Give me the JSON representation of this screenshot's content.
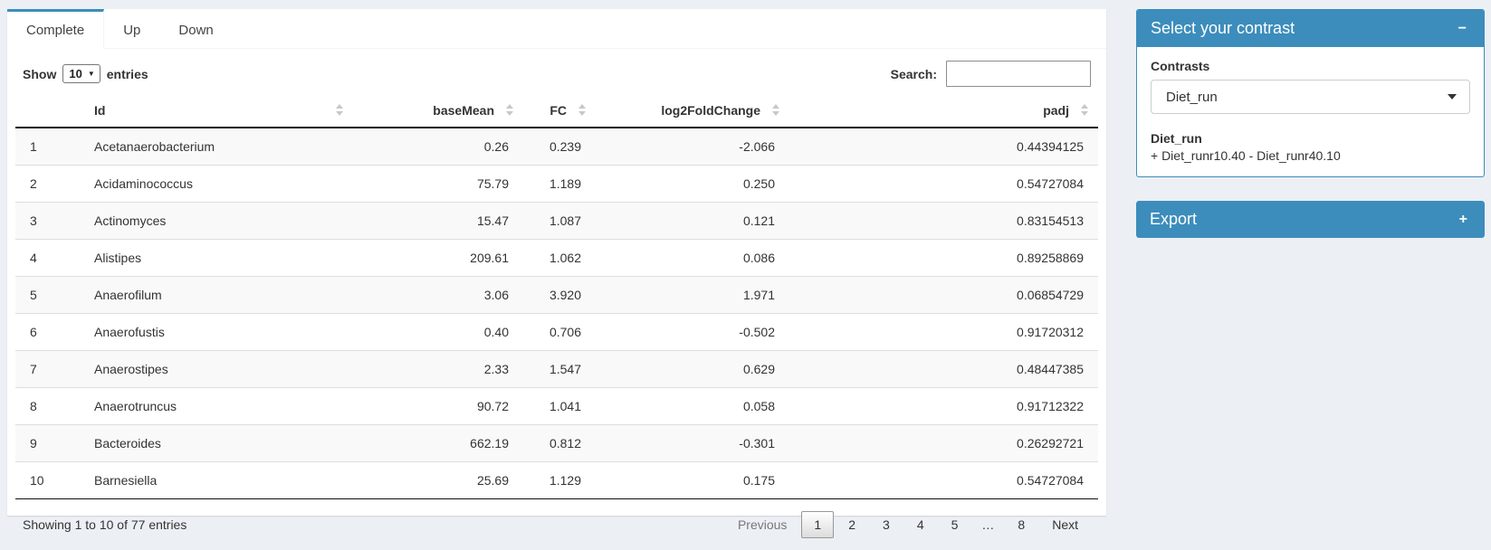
{
  "tabs": [
    {
      "label": "Complete",
      "active": true
    },
    {
      "label": "Up",
      "active": false
    },
    {
      "label": "Down",
      "active": false
    }
  ],
  "table_controls": {
    "show_label": "Show",
    "page_length": "10",
    "entries_label": "entries",
    "search_label": "Search:",
    "search_value": ""
  },
  "table": {
    "columns": [
      {
        "label": ""
      },
      {
        "label": "Id"
      },
      {
        "label": "baseMean"
      },
      {
        "label": "FC"
      },
      {
        "label": "log2FoldChange"
      },
      {
        "label": "padj"
      }
    ],
    "rows": [
      {
        "num": "1",
        "id": "Acetanaerobacterium",
        "baseMean": "0.26",
        "fc": "0.239",
        "log2fc": "-2.066",
        "padj": "0.44394125"
      },
      {
        "num": "2",
        "id": "Acidaminococcus",
        "baseMean": "75.79",
        "fc": "1.189",
        "log2fc": "0.250",
        "padj": "0.54727084"
      },
      {
        "num": "3",
        "id": "Actinomyces",
        "baseMean": "15.47",
        "fc": "1.087",
        "log2fc": "0.121",
        "padj": "0.83154513"
      },
      {
        "num": "4",
        "id": "Alistipes",
        "baseMean": "209.61",
        "fc": "1.062",
        "log2fc": "0.086",
        "padj": "0.89258869"
      },
      {
        "num": "5",
        "id": "Anaerofilum",
        "baseMean": "3.06",
        "fc": "3.920",
        "log2fc": "1.971",
        "padj": "0.06854729"
      },
      {
        "num": "6",
        "id": "Anaerofustis",
        "baseMean": "0.40",
        "fc": "0.706",
        "log2fc": "-0.502",
        "padj": "0.91720312"
      },
      {
        "num": "7",
        "id": "Anaerostipes",
        "baseMean": "2.33",
        "fc": "1.547",
        "log2fc": "0.629",
        "padj": "0.48447385"
      },
      {
        "num": "8",
        "id": "Anaerotruncus",
        "baseMean": "90.72",
        "fc": "1.041",
        "log2fc": "0.058",
        "padj": "0.91712322"
      },
      {
        "num": "9",
        "id": "Bacteroides",
        "baseMean": "662.19",
        "fc": "0.812",
        "log2fc": "-0.301",
        "padj": "0.26292721"
      },
      {
        "num": "10",
        "id": "Barnesiella",
        "baseMean": "25.69",
        "fc": "1.129",
        "log2fc": "0.175",
        "padj": "0.54727084"
      }
    ]
  },
  "footer": {
    "info": "Showing 1 to 10 of 77 entries",
    "pagination": [
      {
        "label": "Previous",
        "state": "disabled"
      },
      {
        "label": "1",
        "state": "active"
      },
      {
        "label": "2",
        "state": ""
      },
      {
        "label": "3",
        "state": ""
      },
      {
        "label": "4",
        "state": ""
      },
      {
        "label": "5",
        "state": ""
      },
      {
        "label": "…",
        "state": "ellipsis"
      },
      {
        "label": "8",
        "state": ""
      },
      {
        "label": "Next",
        "state": ""
      }
    ]
  },
  "contrast_panel": {
    "title": "Select your contrast",
    "collapse_icon": "−",
    "contrasts_label": "Contrasts",
    "selected_contrast": "Diet_run",
    "contrast_name": "Diet_run",
    "contrast_formula": "+ Diet_runr10.40 - Diet_runr40.10"
  },
  "export_panel": {
    "title": "Export",
    "expand_icon": "+"
  },
  "colors": {
    "accent_blue": "#3c8dbc",
    "page_background": "#ecf0f5",
    "stripe": "#f9f9f9"
  }
}
